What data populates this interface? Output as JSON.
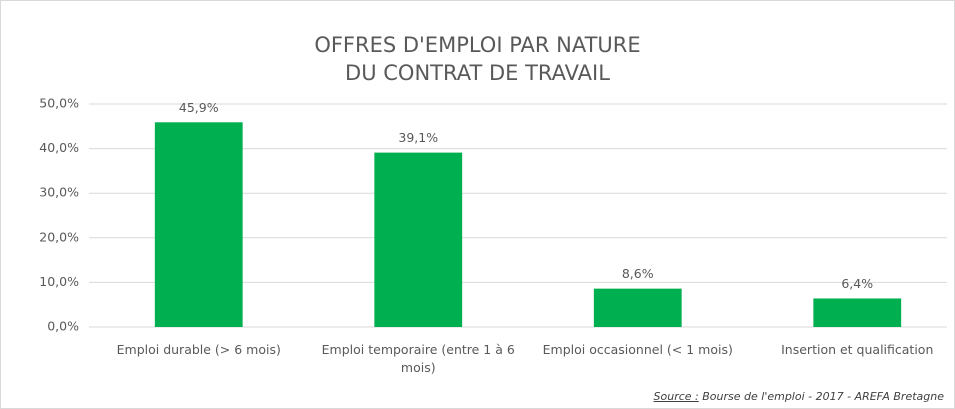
{
  "chart_data": {
    "type": "bar",
    "title": "OFFRES D'EMPLOI PAR NATURE\nDU CONTRAT DE TRAVAIL",
    "categories": [
      "Emploi durable (> 6 mois)",
      "Emploi temporaire (entre 1 à 6 mois)",
      "Emploi occasionnel (< 1 mois)",
      "Insertion et qualification"
    ],
    "values": [
      45.9,
      39.1,
      8.6,
      6.4
    ],
    "value_labels": [
      "45,9%",
      "39,1%",
      "8,6%",
      "6,4%"
    ],
    "color": "#00b050",
    "ylim": [
      0,
      50
    ],
    "yticks": [
      {
        "value": 0,
        "label": "0,0%"
      },
      {
        "value": 10,
        "label": "10,0%"
      },
      {
        "value": 20,
        "label": "20,0%"
      },
      {
        "value": 30,
        "label": "30,0%"
      },
      {
        "value": 40,
        "label": "40,0%"
      },
      {
        "value": 50,
        "label": "50,0%"
      }
    ],
    "grid": true,
    "source_label": "Source :",
    "source": " Bourse de l'emploi - 2017 - AREFA Bretagne"
  }
}
